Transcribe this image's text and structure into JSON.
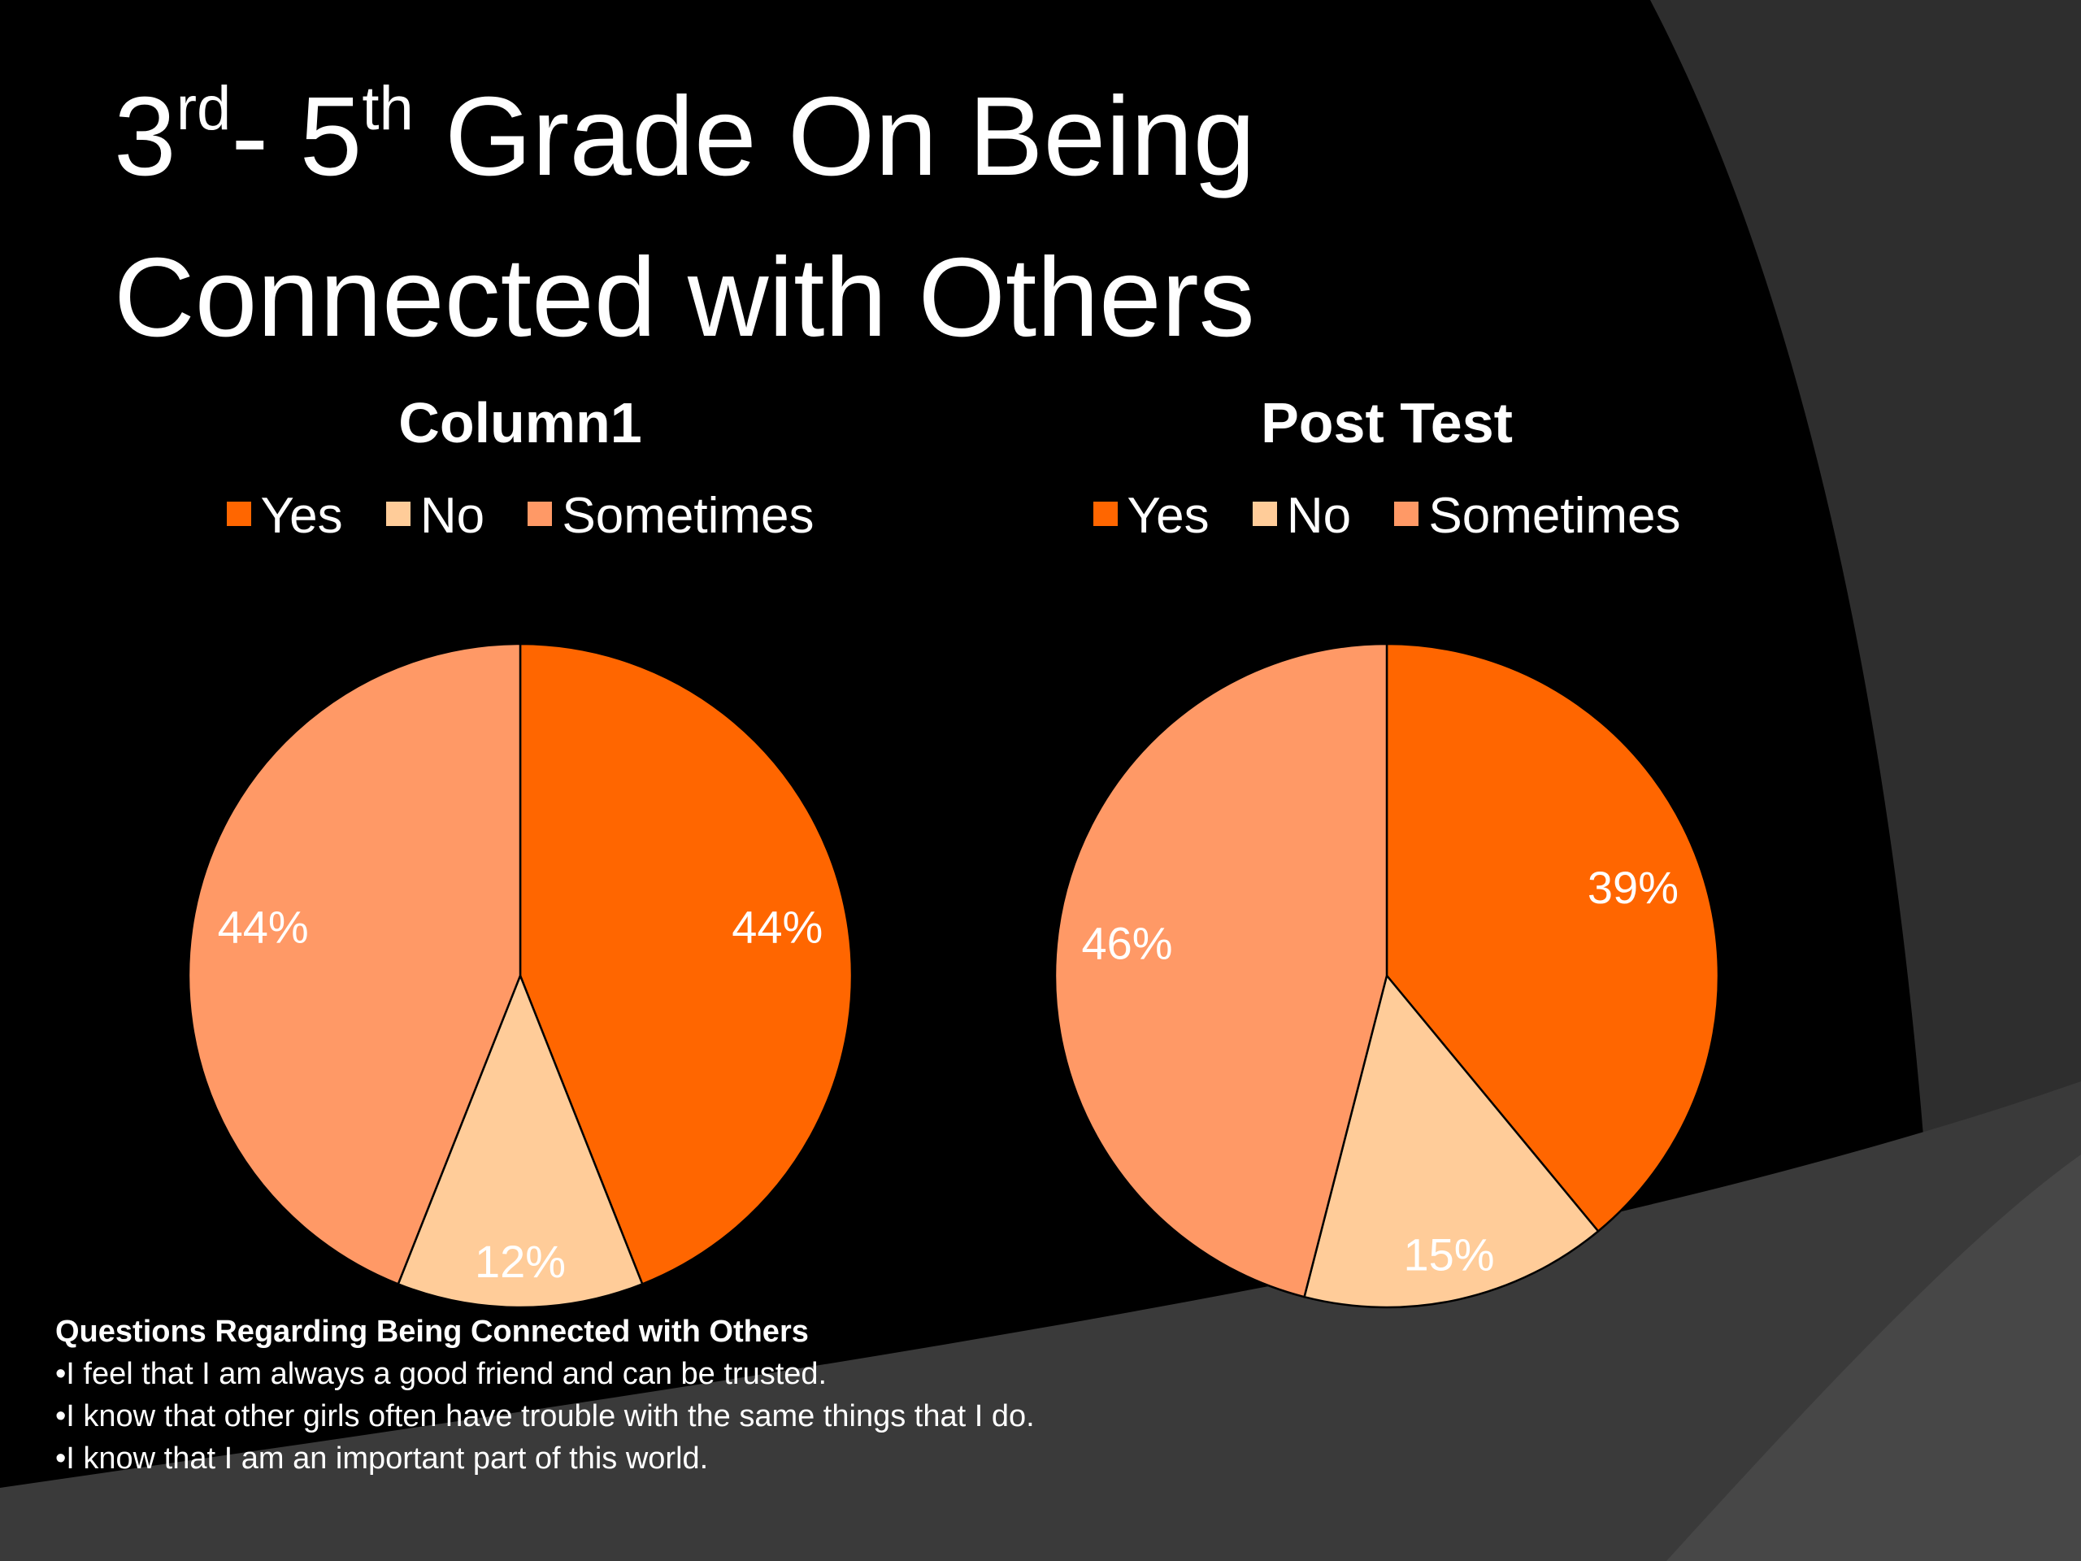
{
  "slide": {
    "title_line1_pre": "3",
    "title_sup1": "rd",
    "title_mid": "- 5",
    "title_sup2": "th",
    "title_line1_post": " Grade On Being",
    "title_line2": "Connected with Others"
  },
  "colors": {
    "background": "#000000",
    "swoosh": "#3a3a3a",
    "yes": "#ff6600",
    "no": "#ffcc99",
    "sometimes": "#ff9966",
    "text": "#ffffff"
  },
  "chart_data": [
    {
      "type": "pie",
      "title": "Column1",
      "categories": [
        "Yes",
        "No",
        "Sometimes"
      ],
      "values": [
        44,
        12,
        44
      ],
      "labels": [
        "44%",
        "12%",
        "44%"
      ],
      "legend": "top"
    },
    {
      "type": "pie",
      "title": "Post Test",
      "categories": [
        "Yes",
        "No",
        "Sometimes"
      ],
      "values": [
        39,
        15,
        46
      ],
      "labels": [
        "39%",
        "15%",
        "46%"
      ],
      "legend": "top"
    }
  ],
  "notes": {
    "heading": "Questions Regarding Being Connected with Others",
    "items": [
      "•I feel that I am always a good friend and can be trusted.",
      "•I know that other girls often have trouble with the same things that I do.",
      "•I know that I am an important part of this world."
    ]
  }
}
